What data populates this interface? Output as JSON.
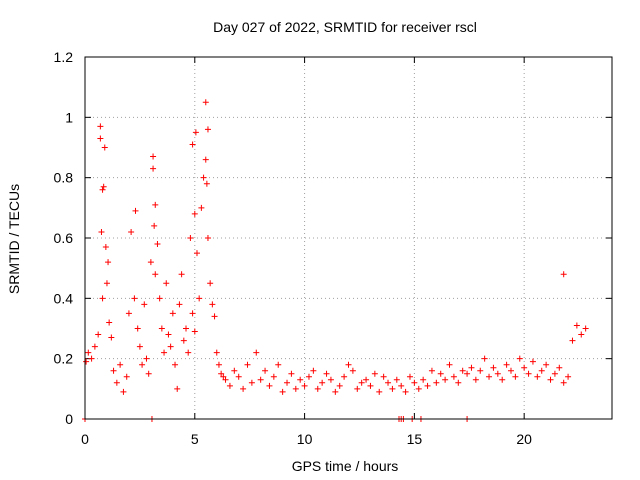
{
  "chart_data": {
    "type": "scatter",
    "title": "Day 027 of 2022, SRMTID for receiver rscl",
    "xlabel": "GPS time / hours",
    "ylabel": "SRMTID / TECUs",
    "xlim": [
      0,
      24
    ],
    "ylim": [
      0,
      1.2
    ],
    "grid": true,
    "marker": "+",
    "color": "#ff0000",
    "xticks": [
      0,
      5,
      10,
      15,
      20
    ],
    "xtick_labels": [
      "0",
      "5",
      "10",
      "15",
      "20"
    ],
    "yticks": [
      0,
      0.2,
      0.4,
      0.6,
      0.8,
      1.0,
      1.2
    ],
    "ytick_labels": [
      "0",
      "0.2",
      "0.4",
      "0.6",
      "0.8",
      "1",
      "1.2"
    ],
    "series": [
      {
        "name": "rscl",
        "x": [
          0.05,
          0.15,
          0.3,
          0.45,
          0.6,
          0.7,
          0.75,
          0.8,
          0.85,
          0.9,
          0.95,
          1.0,
          1.05,
          1.1,
          1.2,
          1.3,
          1.45,
          1.6,
          1.75,
          1.9,
          2.0,
          2.1,
          2.25,
          2.4,
          2.5,
          2.6,
          2.7,
          2.8,
          2.9,
          3.0,
          3.1,
          3.15,
          3.2,
          3.3,
          3.4,
          3.5,
          3.6,
          3.7,
          3.8,
          3.9,
          4.0,
          4.1,
          4.2,
          4.3,
          4.4,
          4.5,
          4.6,
          4.7,
          4.8,
          4.9,
          5.0,
          5.05,
          5.1,
          5.2,
          5.3,
          5.4,
          5.5,
          5.55,
          5.6,
          5.7,
          5.8,
          5.9,
          6.0,
          6.1,
          6.2,
          6.3,
          6.4,
          6.6,
          6.8,
          7.0,
          7.2,
          7.4,
          7.6,
          7.8,
          8.0,
          8.2,
          8.4,
          8.6,
          8.8,
          9.0,
          9.2,
          9.4,
          9.6,
          9.8,
          10.0,
          10.2,
          10.4,
          10.6,
          10.8,
          11.0,
          11.2,
          11.4,
          11.6,
          11.8,
          12.0,
          12.2,
          12.4,
          12.6,
          12.8,
          13.0,
          13.2,
          13.4,
          13.6,
          13.8,
          14.0,
          14.2,
          14.4,
          14.6,
          14.8,
          15.0,
          15.2,
          15.4,
          15.6,
          15.8,
          16.0,
          16.2,
          16.4,
          16.6,
          16.8,
          17.0,
          17.2,
          17.4,
          17.6,
          17.8,
          18.0,
          18.2,
          18.4,
          18.6,
          18.8,
          19.0,
          19.2,
          19.4,
          19.6,
          19.8,
          20.0,
          20.2,
          20.4,
          20.6,
          20.8,
          21.0,
          21.2,
          21.4,
          21.6,
          21.8,
          22.0,
          22.2,
          22.4,
          22.6,
          22.8,
          0.0,
          3.05,
          14.3,
          14.4,
          14.5,
          14.9,
          15.3,
          17.4,
          0.7,
          0.8,
          2.3,
          3.1,
          3.2,
          4.9,
          5.0,
          5.5,
          5.6,
          21.8
        ],
        "y": [
          0.19,
          0.22,
          0.2,
          0.24,
          0.28,
          0.97,
          0.62,
          0.4,
          0.77,
          0.9,
          0.57,
          0.45,
          0.52,
          0.32,
          0.27,
          0.16,
          0.12,
          0.18,
          0.09,
          0.14,
          0.35,
          0.62,
          0.4,
          0.3,
          0.24,
          0.18,
          0.38,
          0.2,
          0.15,
          0.52,
          0.87,
          0.64,
          0.48,
          0.58,
          0.4,
          0.3,
          0.22,
          0.45,
          0.28,
          0.24,
          0.35,
          0.18,
          0.1,
          0.38,
          0.48,
          0.26,
          0.3,
          0.22,
          0.6,
          0.35,
          0.29,
          0.95,
          0.55,
          0.4,
          0.7,
          0.8,
          1.05,
          0.78,
          0.6,
          0.45,
          0.38,
          0.34,
          0.22,
          0.18,
          0.15,
          0.14,
          0.13,
          0.11,
          0.16,
          0.14,
          0.1,
          0.18,
          0.12,
          0.22,
          0.13,
          0.16,
          0.11,
          0.14,
          0.18,
          0.09,
          0.12,
          0.15,
          0.1,
          0.13,
          0.11,
          0.14,
          0.16,
          0.1,
          0.12,
          0.15,
          0.13,
          0.09,
          0.11,
          0.14,
          0.18,
          0.16,
          0.1,
          0.12,
          0.13,
          0.11,
          0.15,
          0.09,
          0.14,
          0.12,
          0.1,
          0.13,
          0.11,
          0.09,
          0.14,
          0.12,
          0.1,
          0.13,
          0.11,
          0.16,
          0.12,
          0.15,
          0.13,
          0.18,
          0.14,
          0.12,
          0.16,
          0.15,
          0.17,
          0.13,
          0.16,
          0.2,
          0.14,
          0.17,
          0.15,
          0.13,
          0.18,
          0.16,
          0.14,
          0.2,
          0.17,
          0.15,
          0.19,
          0.14,
          0.16,
          0.18,
          0.13,
          0.15,
          0.17,
          0.12,
          0.14,
          0.26,
          0.31,
          0.28,
          0.3,
          0.0,
          0.0,
          0.0,
          0.0,
          0.0,
          0.0,
          0.0,
          0.0,
          0.93,
          0.76,
          0.69,
          0.83,
          0.71,
          0.91,
          0.68,
          0.86,
          0.96,
          0.48
        ]
      }
    ]
  }
}
